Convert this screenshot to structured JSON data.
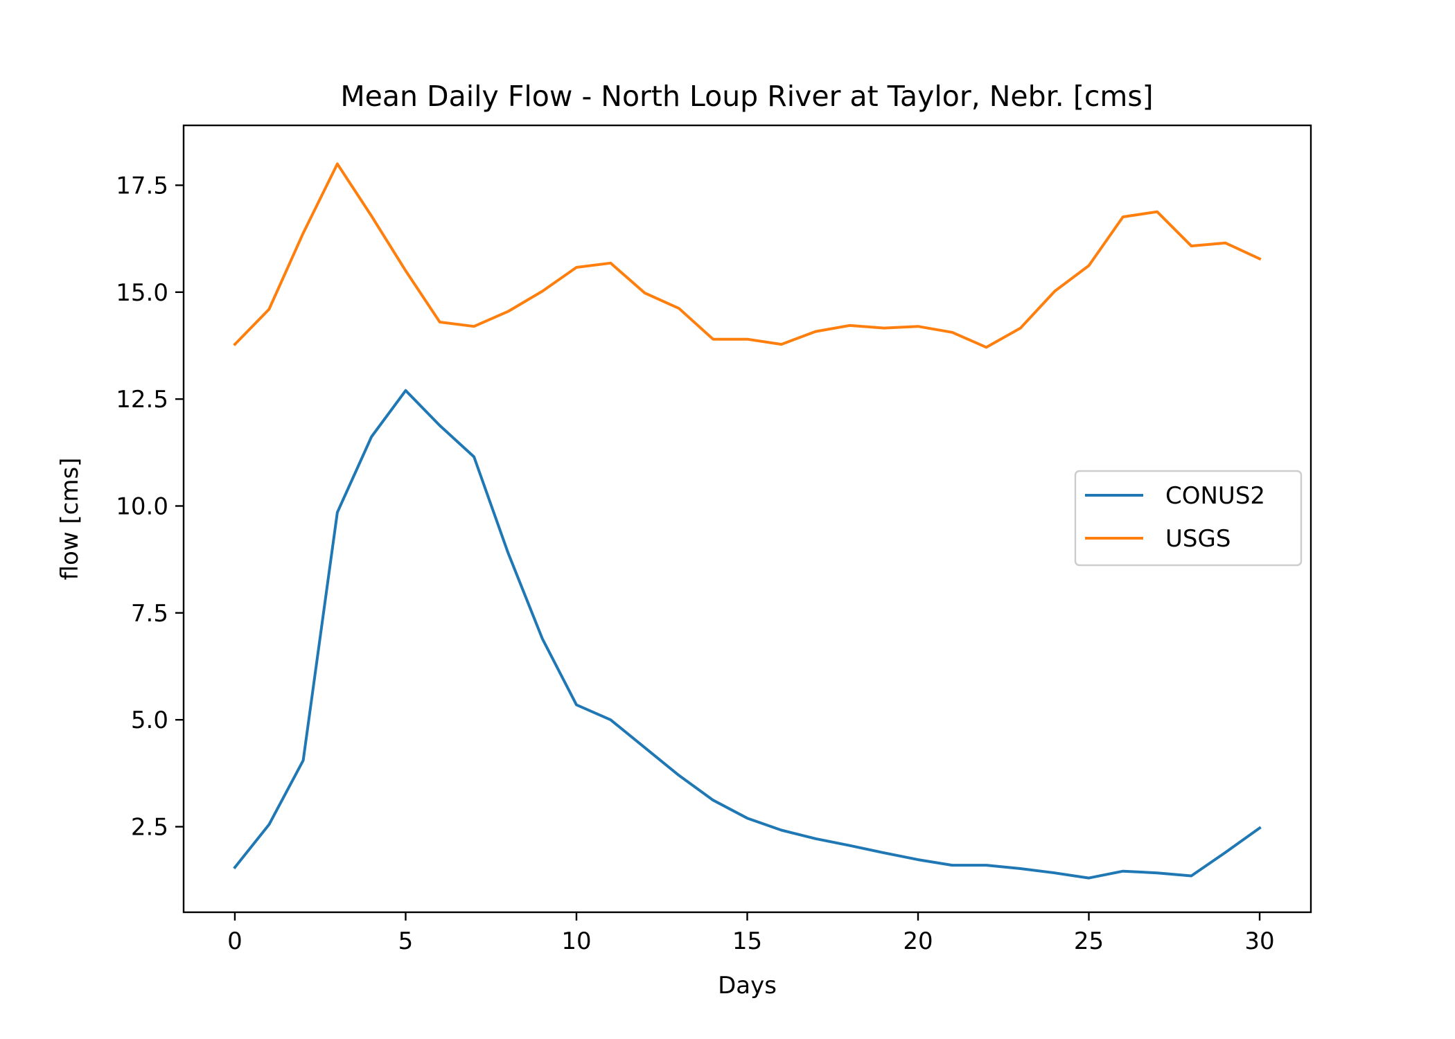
{
  "chart_data": {
    "type": "line",
    "title": "Mean Daily Flow - North Loup River at Taylor, Nebr. [cms]",
    "xlabel": "Days",
    "ylabel": "flow [cms]",
    "xlim": [
      -1.5,
      31.5
    ],
    "ylim": [
      0.5,
      18.9
    ],
    "xticks": [
      0,
      5,
      10,
      15,
      20,
      25,
      30
    ],
    "xtick_labels": [
      "0",
      "5",
      "10",
      "15",
      "20",
      "25",
      "30"
    ],
    "yticks": [
      2.5,
      5.0,
      7.5,
      10.0,
      12.5,
      15.0,
      17.5
    ],
    "ytick_labels": [
      "2.5",
      "5.0",
      "7.5",
      "10.0",
      "12.5",
      "15.0",
      "17.5"
    ],
    "grid": false,
    "legend_position": "center-right",
    "x": [
      0,
      1,
      2,
      3,
      4,
      5,
      6,
      7,
      8,
      9,
      10,
      11,
      12,
      13,
      14,
      15,
      16,
      17,
      18,
      19,
      20,
      21,
      22,
      23,
      24,
      25,
      26,
      27,
      28,
      29,
      30
    ],
    "series": [
      {
        "name": "CONUS2",
        "color": "#1f77b4",
        "values": [
          1.55,
          2.55,
          4.05,
          9.85,
          11.62,
          12.7,
          11.88,
          11.15,
          8.9,
          6.9,
          5.35,
          5.0,
          4.35,
          3.7,
          3.12,
          2.7,
          2.42,
          2.22,
          2.06,
          1.89,
          1.73,
          1.6,
          1.6,
          1.52,
          1.42,
          1.3,
          1.46,
          1.42,
          1.35,
          1.9,
          2.47
        ]
      },
      {
        "name": "USGS",
        "color": "#ff7f0e",
        "values": [
          13.78,
          14.6,
          16.38,
          18.0,
          16.78,
          15.5,
          14.3,
          14.2,
          14.55,
          15.02,
          15.58,
          15.68,
          14.98,
          14.62,
          13.9,
          13.9,
          13.78,
          14.08,
          14.22,
          14.16,
          14.2,
          14.06,
          13.71,
          14.16,
          15.02,
          15.62,
          16.76,
          16.88,
          16.08,
          16.15,
          15.78
        ]
      }
    ]
  }
}
